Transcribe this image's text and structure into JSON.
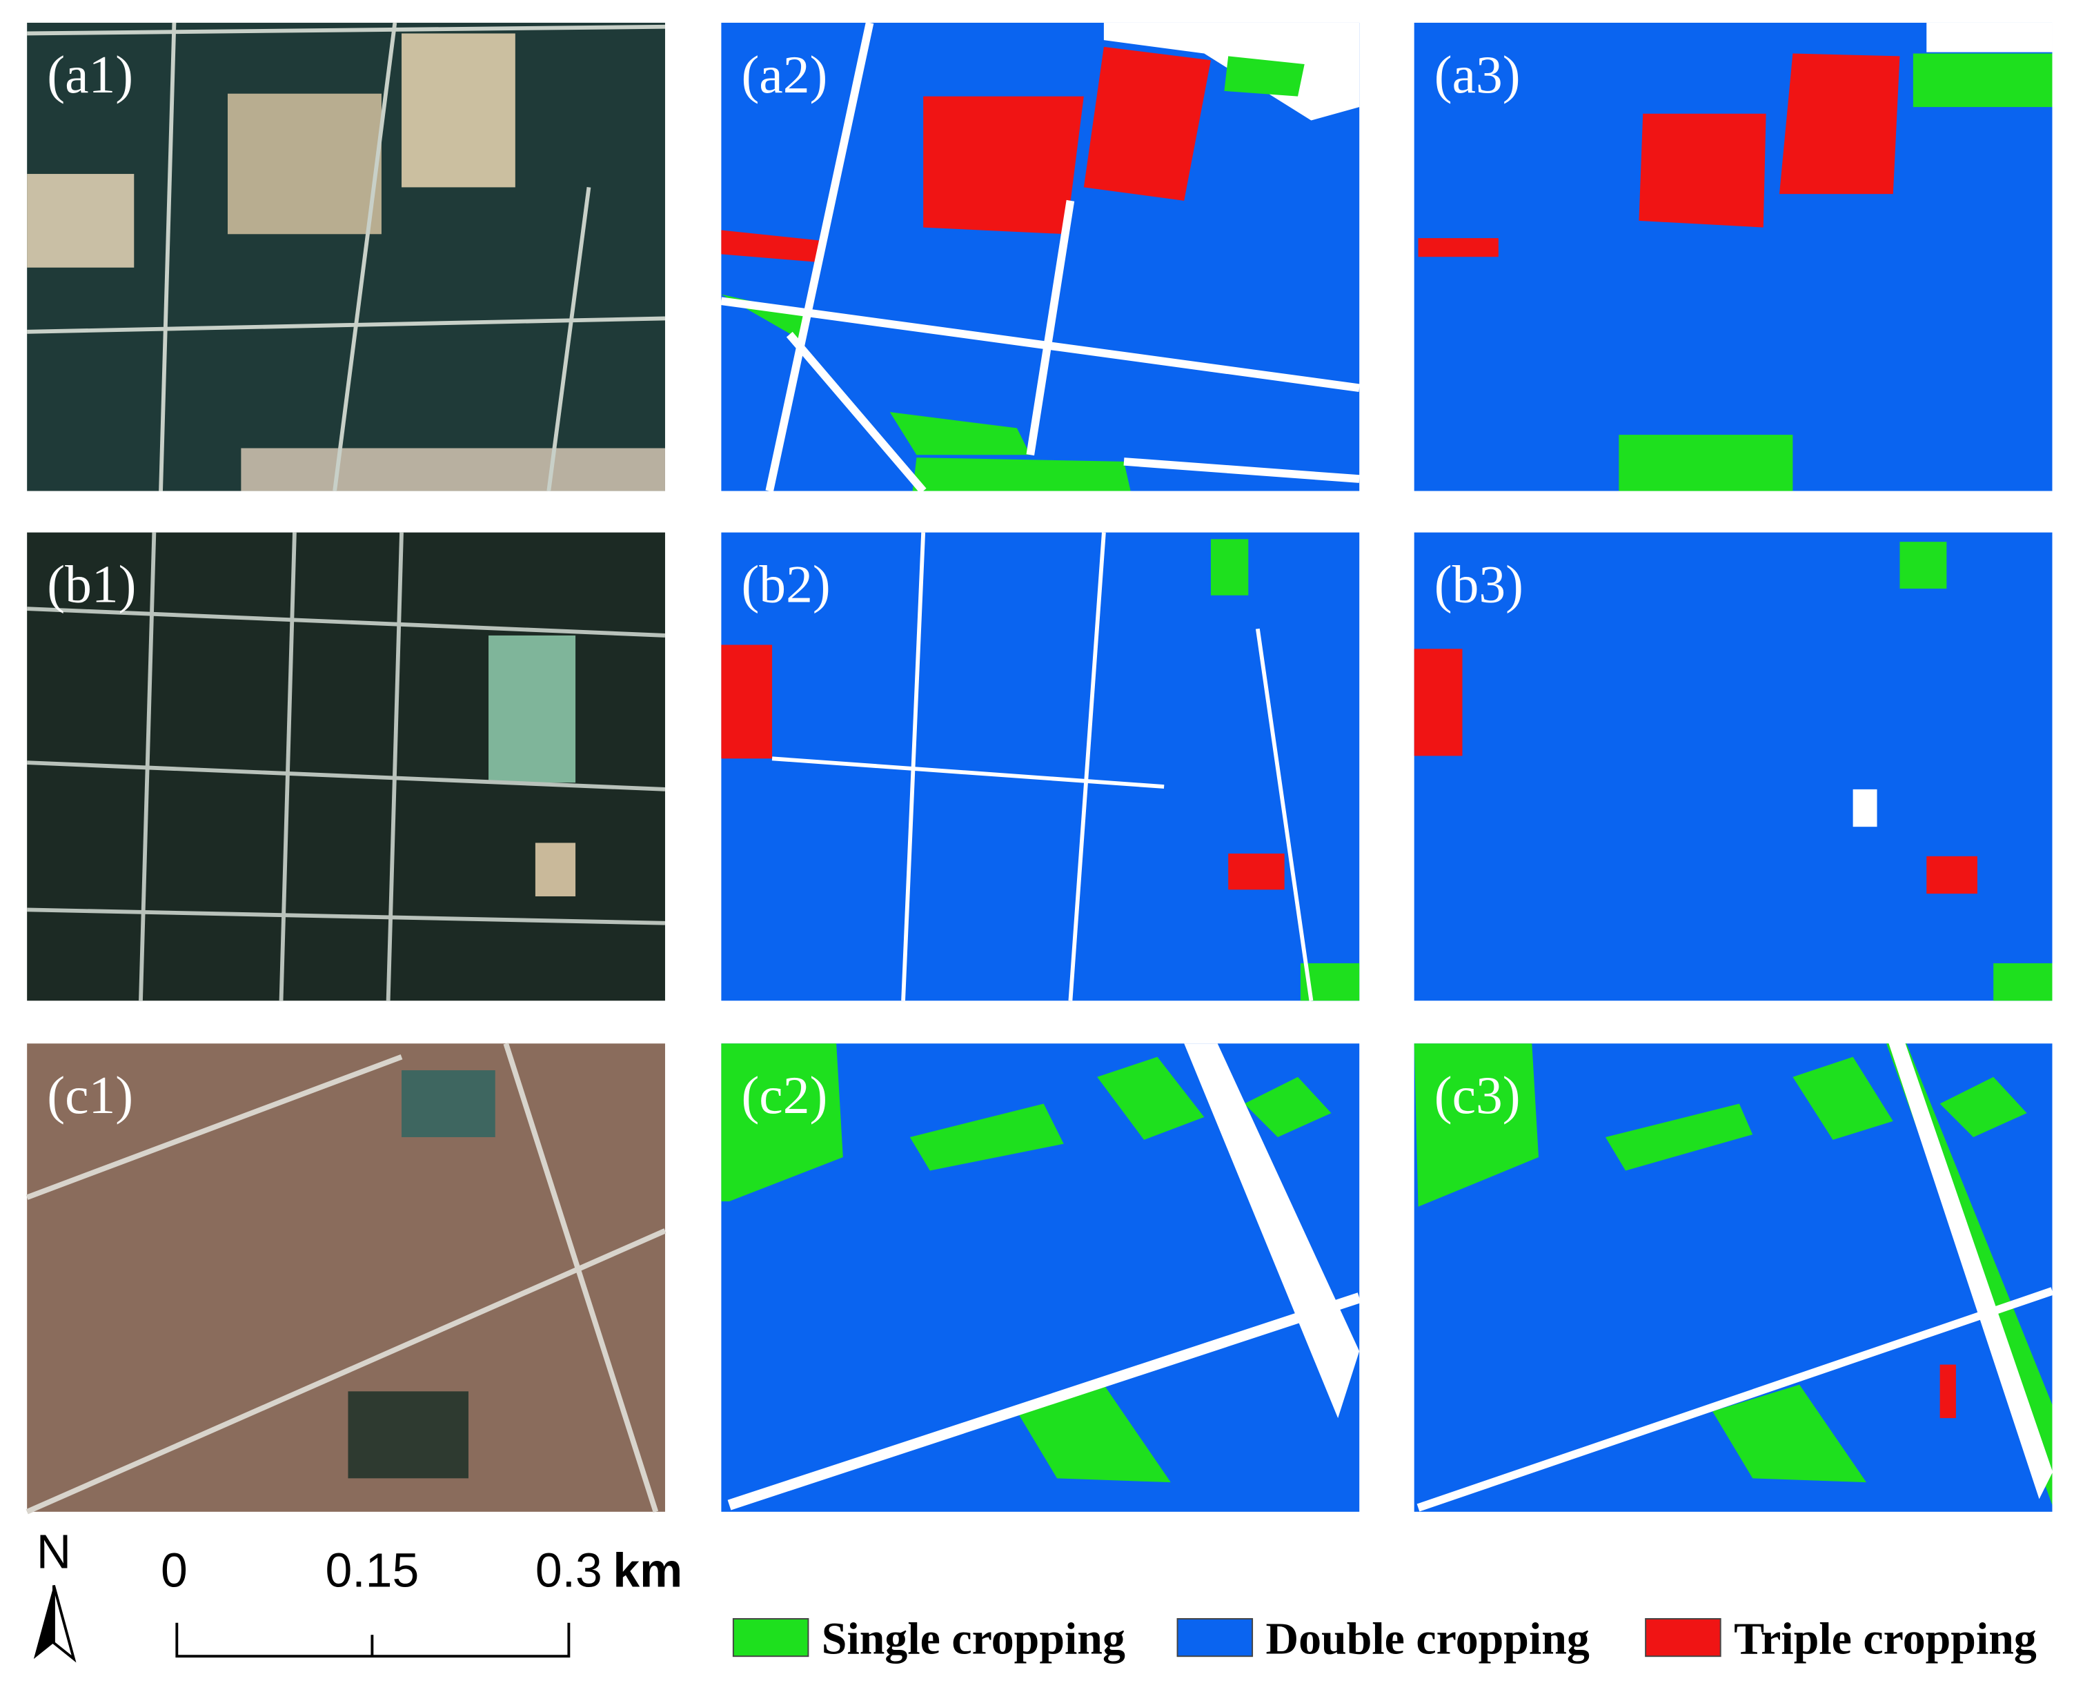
{
  "panels": [
    "(a1)",
    "(a2)",
    "(a3)",
    "(b1)",
    "(b2)",
    "(b3)",
    "(c1)",
    "(c2)",
    "(c3)"
  ],
  "scale_bar": {
    "north": "N",
    "ticks": [
      "0",
      "0.15",
      "0.3"
    ],
    "unit": "km"
  },
  "legend": [
    {
      "label": "Single cropping",
      "color": "#1ee01e"
    },
    {
      "label": "Double cropping",
      "color": "#0a64f0"
    },
    {
      "label": "Triple cropping",
      "color": "#f01414"
    }
  ]
}
